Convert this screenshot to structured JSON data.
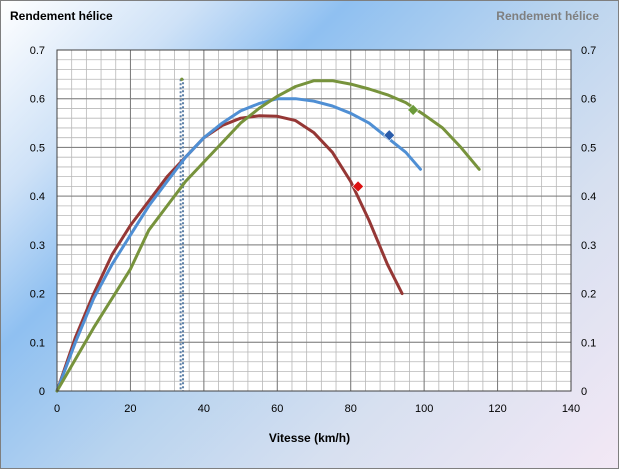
{
  "chart_data": {
    "type": "line",
    "title": "Rendement hélice",
    "title_right": "Rendement hélice",
    "xlabel": "Vitesse (km/h)",
    "ylabel": "",
    "xlim": [
      0,
      140
    ],
    "ylim": [
      0,
      0.7
    ],
    "x_ticks": [
      "0",
      "20",
      "40",
      "60",
      "80",
      "100",
      "120",
      "140"
    ],
    "y_ticks": [
      "0",
      "0.1",
      "0.2",
      "0.3",
      "0.4",
      "0.5",
      "0.6",
      "0.7"
    ],
    "grid": true,
    "legend": "none",
    "series": [
      {
        "color": "#953735",
        "x": [
          0,
          5,
          10,
          15,
          20,
          25,
          30,
          35,
          40,
          45,
          50,
          55,
          60,
          65,
          70,
          75,
          80,
          85,
          90,
          94
        ],
        "y": [
          0,
          0.11,
          0.2,
          0.28,
          0.34,
          0.39,
          0.44,
          0.48,
          0.52,
          0.545,
          0.56,
          0.565,
          0.564,
          0.555,
          0.53,
          0.49,
          0.43,
          0.35,
          0.26,
          0.2
        ],
        "marker": {
          "x": 82,
          "y": 0.42,
          "color": "#dd1111"
        }
      },
      {
        "color": "#4f8fd4",
        "x": [
          0,
          5,
          10,
          15,
          20,
          25,
          30,
          35,
          40,
          45,
          50,
          55,
          60,
          65,
          70,
          75,
          80,
          85,
          90,
          95,
          99
        ],
        "y": [
          0,
          0.1,
          0.19,
          0.26,
          0.32,
          0.38,
          0.43,
          0.48,
          0.52,
          0.55,
          0.575,
          0.59,
          0.6,
          0.6,
          0.595,
          0.585,
          0.57,
          0.55,
          0.52,
          0.49,
          0.455
        ],
        "marker": {
          "x": 90.5,
          "y": 0.525,
          "color": "#2a5caa"
        }
      },
      {
        "color": "#77933c",
        "x": [
          0,
          10,
          20,
          25,
          30,
          35,
          40,
          45,
          50,
          55,
          60,
          65,
          70,
          75,
          80,
          85,
          90,
          95,
          100,
          105,
          110,
          115
        ],
        "y": [
          0,
          0.13,
          0.25,
          0.33,
          0.38,
          0.43,
          0.47,
          0.51,
          0.55,
          0.58,
          0.605,
          0.625,
          0.637,
          0.637,
          0.63,
          0.62,
          0.608,
          0.592,
          0.567,
          0.54,
          0.5,
          0.455
        ],
        "marker": {
          "x": 97,
          "y": 0.577,
          "color": "#6b9a3a"
        }
      }
    ],
    "vertical_line": {
      "x": 34,
      "y_top": 0.64,
      "color": "#5b7fa6"
    }
  }
}
